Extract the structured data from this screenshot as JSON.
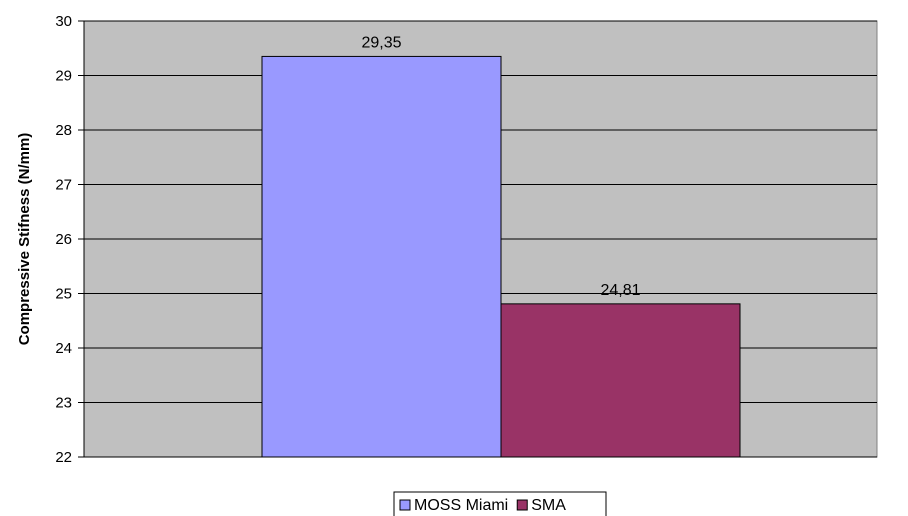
{
  "chart_data": {
    "type": "bar",
    "title": "",
    "xlabel": "",
    "ylabel": "Compressive Stifness (N/mm)",
    "ylim": [
      22,
      30
    ],
    "yticks": [
      22,
      23,
      24,
      25,
      26,
      27,
      28,
      29,
      30
    ],
    "grid": true,
    "legend_position": "bottom",
    "plot_background": "#c0c0c0",
    "series": [
      {
        "name": "MOSS Miami",
        "values": [
          29.35
        ],
        "label": "29,35",
        "color": "#9999ff"
      },
      {
        "name": "SMA",
        "values": [
          24.81
        ],
        "label": "24,81",
        "color": "#993366"
      }
    ]
  }
}
